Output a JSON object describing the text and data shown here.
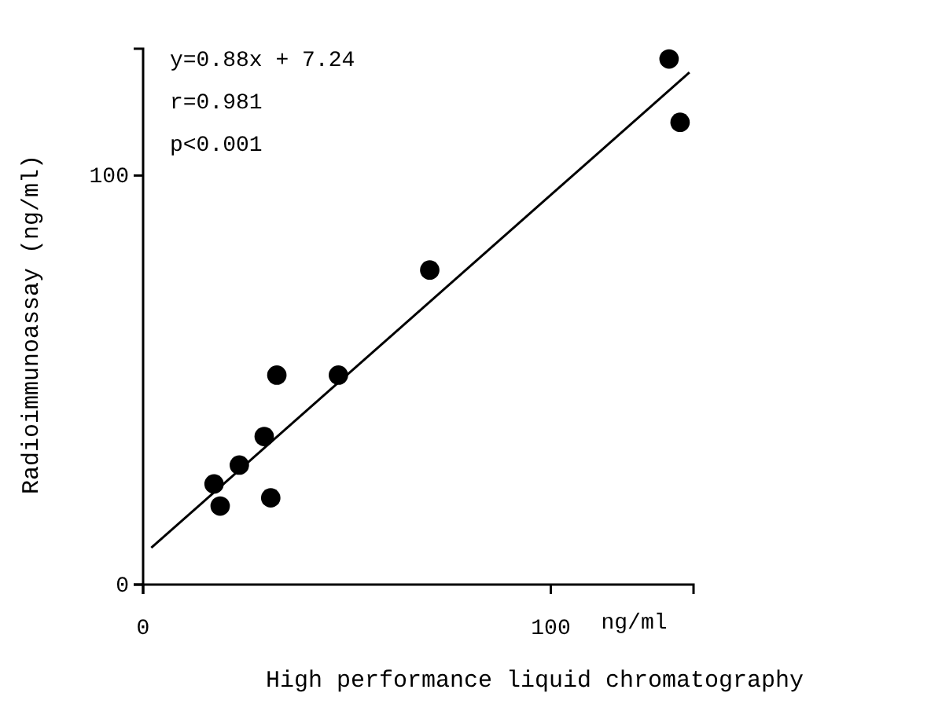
{
  "chart_data": {
    "type": "scatter",
    "xlabel": "High performance liquid chromatography",
    "ylabel": "Radioimmunoassay (ng/ml)",
    "annotations": [
      "y=0.88x + 7.24",
      "r=0.981",
      "p<0.001",
      "ng/ml"
    ],
    "xlim": [
      0,
      135
    ],
    "ylim": [
      0,
      131
    ],
    "xticks": [
      0,
      100
    ],
    "yticks": [
      0,
      100
    ],
    "grid": false,
    "series": [
      {
        "marker": "circle",
        "color": "#000000",
        "x": [
          17.4,
          18.9,
          23.6,
          29.7,
          31.3,
          32.8,
          47.9,
          70.3,
          129,
          131.7
        ],
        "values": [
          24.6,
          19.2,
          29.2,
          36.2,
          21.2,
          51.2,
          51.2,
          76.9,
          128.5,
          113
        ]
      },
      {
        "type": "line",
        "color": "#000000",
        "x": [
          2,
          134
        ],
        "values": [
          9.0,
          125.2
        ]
      }
    ]
  }
}
